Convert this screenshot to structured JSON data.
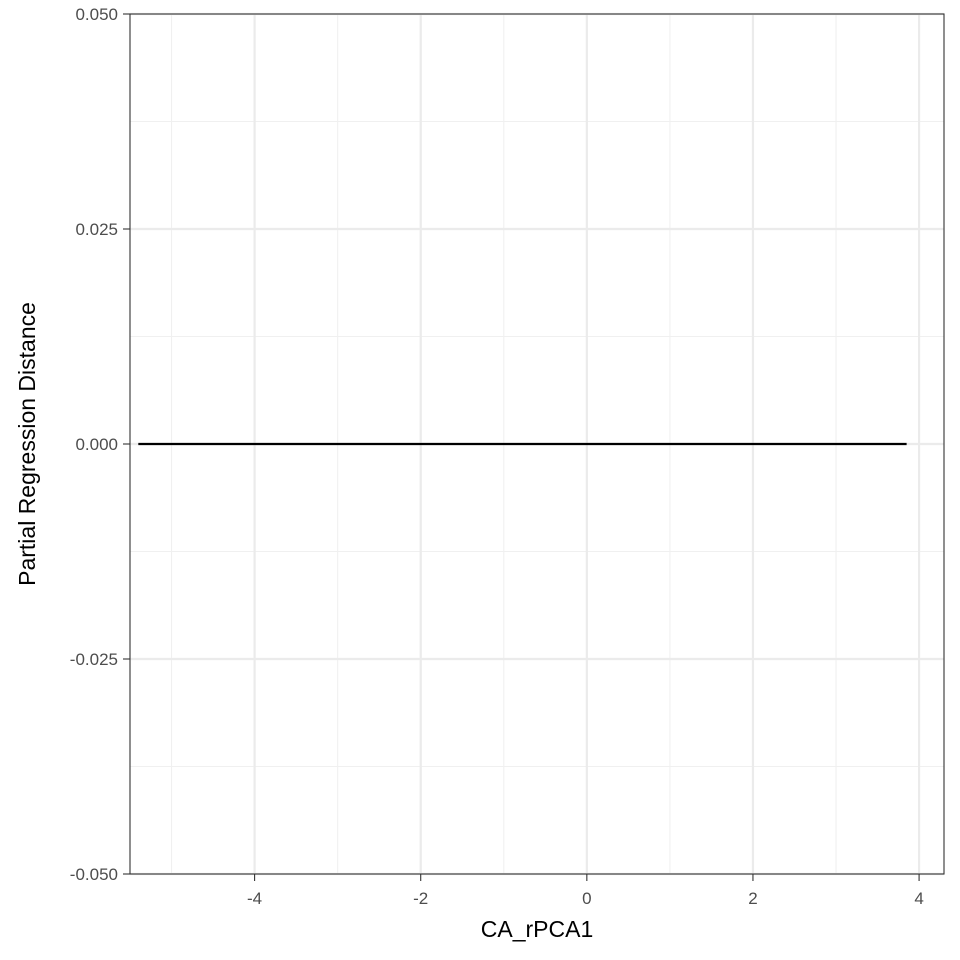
{
  "chart_data": {
    "type": "line",
    "title": "",
    "xlabel": "CA_rPCA1",
    "ylabel": "Partial Regression Distance",
    "xlim": [
      -5.5,
      4.3
    ],
    "ylim": [
      -0.05,
      0.05
    ],
    "x_ticks": [
      -4,
      -2,
      0,
      2,
      4
    ],
    "x_tick_labels": [
      "-4",
      "-2",
      "0",
      "2",
      "4"
    ],
    "y_ticks": [
      -0.05,
      -0.025,
      0,
      0.025,
      0.05
    ],
    "y_tick_labels": [
      "-0.050",
      "-0.025",
      "0.000",
      "0.025",
      "0.050"
    ],
    "grid": true,
    "legend": "none",
    "series": [
      {
        "x": [
          -5.4,
          3.85
        ],
        "y": [
          0,
          0
        ],
        "color": "#000000"
      }
    ]
  }
}
